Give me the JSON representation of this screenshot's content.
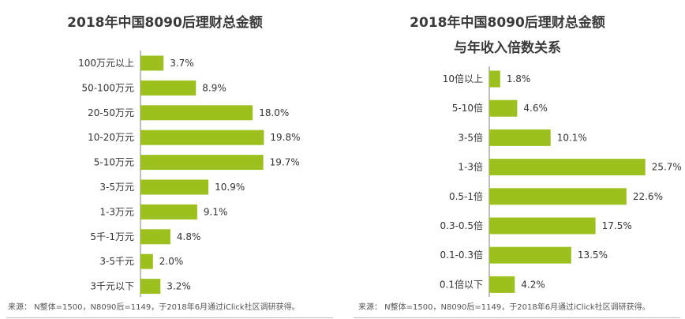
{
  "colors": {
    "bar": "#9cc11e",
    "axis": "#7f7f7f",
    "text": "#333333"
  },
  "chart_data": [
    {
      "type": "bar",
      "orientation": "horizontal",
      "title": "2018年中国8090后理财总金额",
      "categories": [
        "100万元以上",
        "50-100万元",
        "20-50万元",
        "10-20万元",
        "5-10万元",
        "3-5万元",
        "1-3万元",
        "5千-1万元",
        "3-5千元",
        "3千元以下"
      ],
      "values": [
        3.7,
        8.9,
        18.0,
        19.8,
        19.7,
        10.9,
        9.1,
        4.8,
        2.0,
        3.2
      ],
      "value_labels": [
        "3.7%",
        "8.9%",
        "18.0%",
        "19.8%",
        "19.7%",
        "10.9%",
        "9.1%",
        "4.8%",
        "2.0%",
        "3.2%"
      ],
      "unit": "%",
      "xlim": [
        0,
        20
      ],
      "source": "来源： N整体=1500，N8090后=1149，于2018年6月通过iClick社区调研获得。"
    },
    {
      "type": "bar",
      "orientation": "horizontal",
      "title": "2018年中国8090后理财总金额",
      "subtitle": "与年收入倍数关系",
      "categories": [
        "10倍以上",
        "5-10倍",
        "3-5倍",
        "1-3倍",
        "0.5-1倍",
        "0.3-0.5倍",
        "0.1-0.3倍",
        "0.1倍以下"
      ],
      "values": [
        1.8,
        4.6,
        10.1,
        25.7,
        22.6,
        17.5,
        13.5,
        4.2
      ],
      "value_labels": [
        "1.8%",
        "4.6%",
        "10.1%",
        "25.7%",
        "22.6%",
        "17.5%",
        "13.5%",
        "4.2%"
      ],
      "unit": "%",
      "xlim": [
        0,
        26
      ],
      "source": "来源： N整体=1500，N8090后=1149，于2018年6月通过iClick社区调研获得。"
    }
  ]
}
